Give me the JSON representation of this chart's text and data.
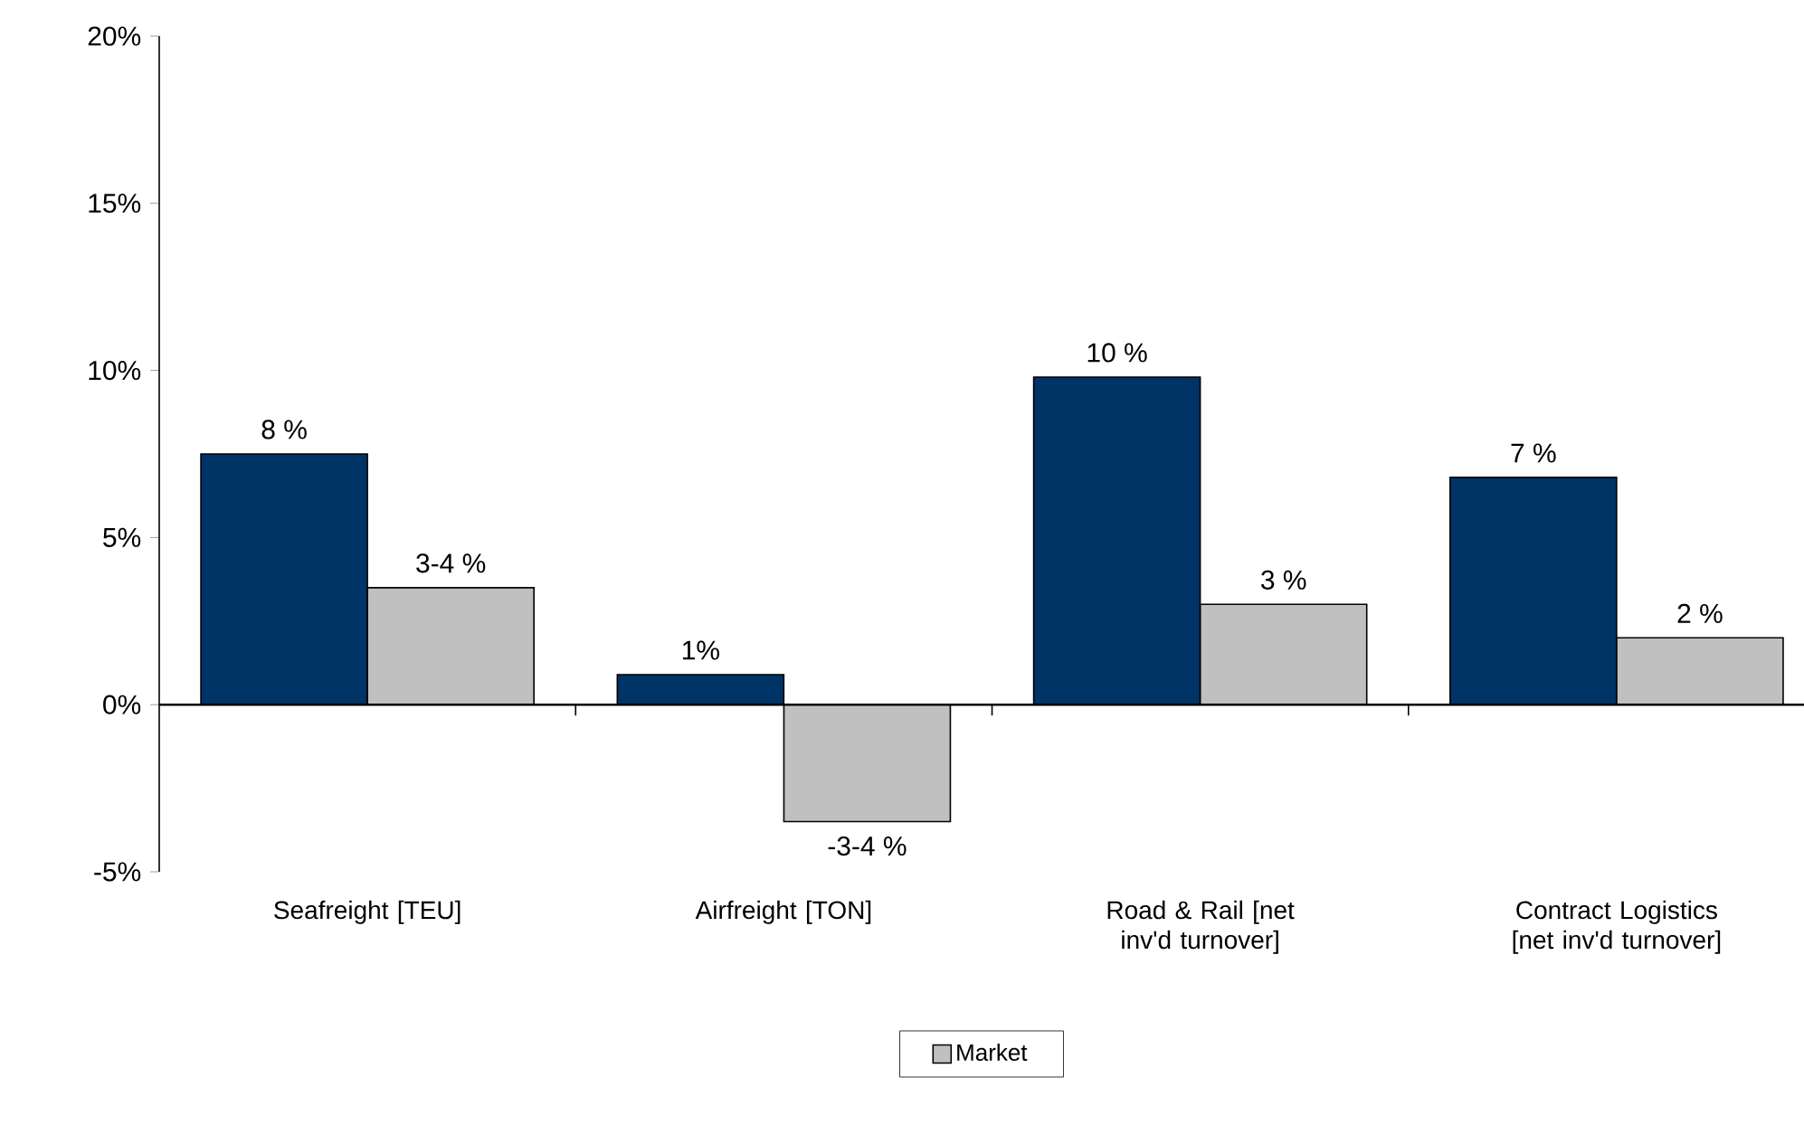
{
  "chart_data": {
    "type": "bar",
    "categories": [
      "Seafreight [TEU]",
      "Airfreight [TON]",
      "Road & Rail [net inv'd turnover]",
      "Contract Logistics [net inv'd turnover]"
    ],
    "series": [
      {
        "color": "#003366",
        "values": [
          7.5,
          0.9,
          9.8,
          6.8
        ],
        "value_labels": [
          "8 %",
          "1%",
          "10 %",
          "7 %"
        ]
      },
      {
        "name": "Market",
        "color": "#c0c0c0",
        "values": [
          3.5,
          -3.5,
          3.0,
          2.0
        ],
        "value_labels": [
          "3-4 %",
          "-3-4 %",
          "3 %",
          "2 %"
        ]
      }
    ],
    "ylim": [
      -5,
      20
    ],
    "yticks": [
      {
        "value": -5,
        "label": "-5%"
      },
      {
        "value": 0,
        "label": "0%"
      },
      {
        "value": 5,
        "label": "5%"
      },
      {
        "value": 10,
        "label": "10%"
      },
      {
        "value": 15,
        "label": "15%"
      },
      {
        "value": 20,
        "label": "20%"
      }
    ],
    "legend": "bottom"
  }
}
